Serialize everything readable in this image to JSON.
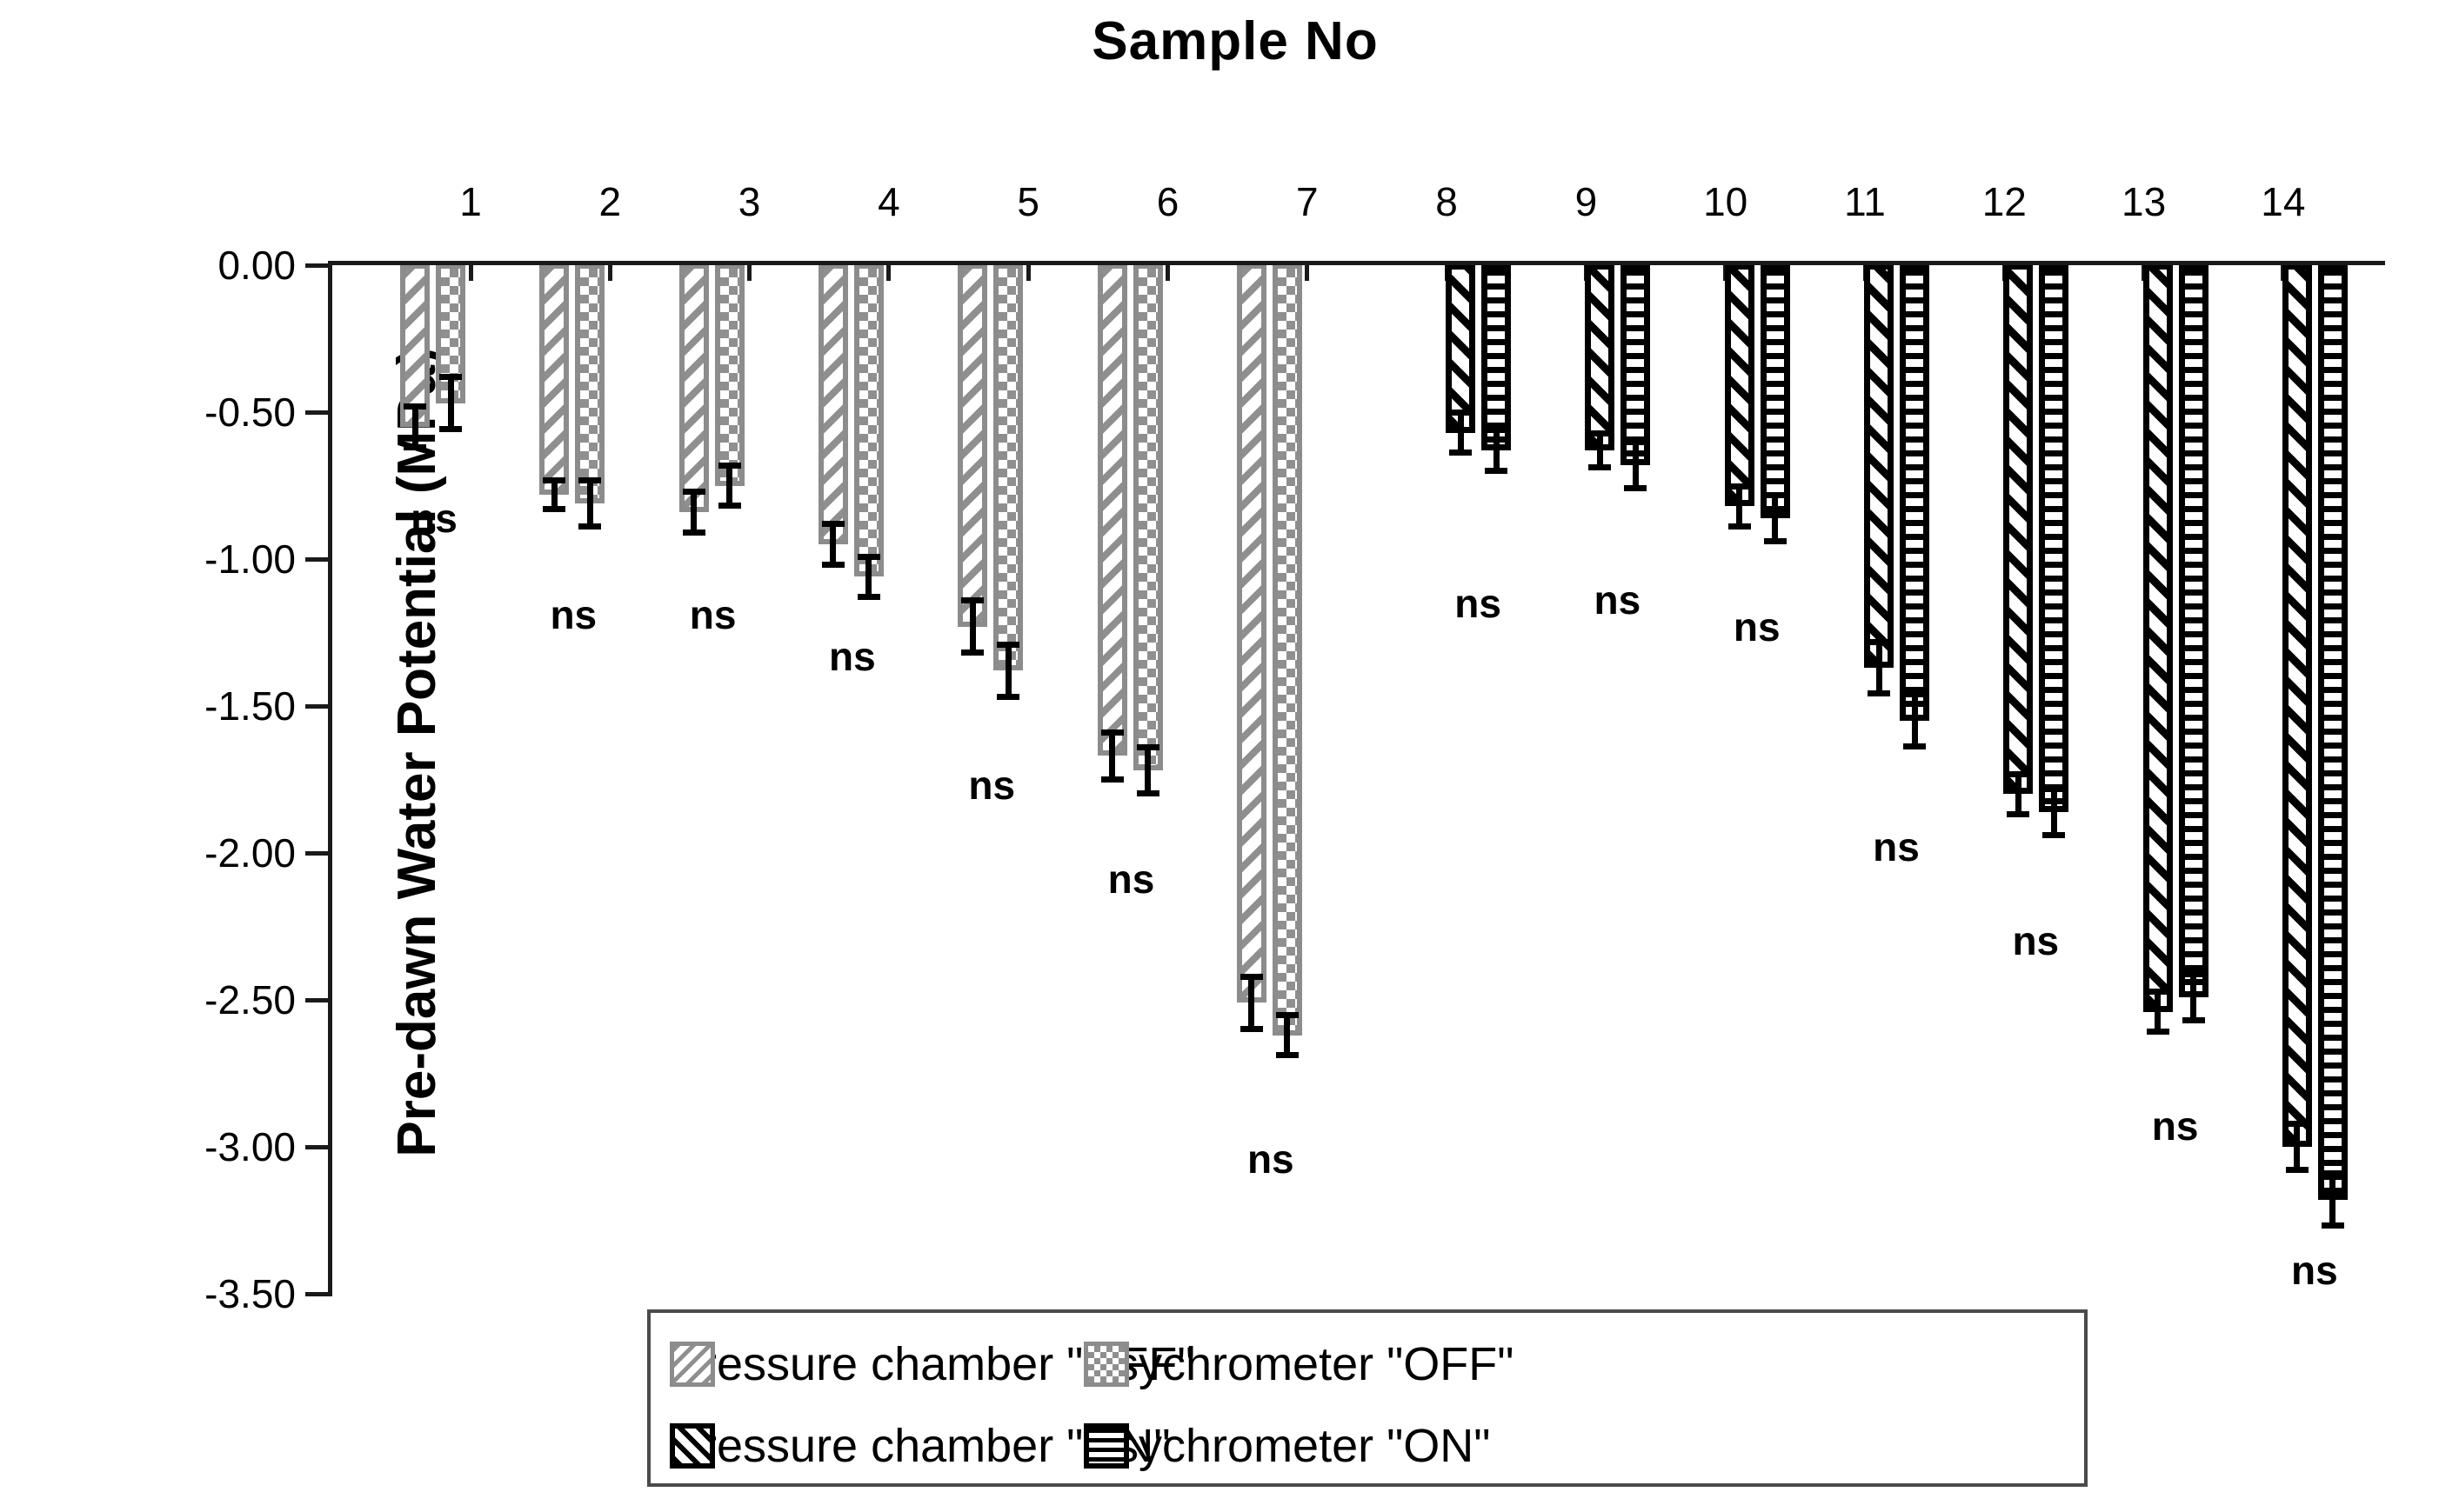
{
  "title": "Sample No",
  "y_axis": {
    "label": "Pre-dawn Water Potential (MPa)",
    "tick_labels": [
      "0.00",
      "-0.50",
      "-1.00",
      "-1.50",
      "-2.00",
      "-2.50",
      "-3.00",
      "-3.50"
    ],
    "tick_values": [
      0,
      -0.5,
      -1.0,
      -1.5,
      -2.0,
      -2.5,
      -3.0,
      -3.5
    ]
  },
  "legend": {
    "items": [
      {
        "label": "Pressure chamber \"OFF\"",
        "pattern": "diagonal-gray-hatch",
        "swatch_color": "#8c8c8c"
      },
      {
        "label": "Psychrometer \"OFF\"",
        "pattern": "checkerboard-gray",
        "swatch_color": "#8c8c8c"
      },
      {
        "label": "Pressure chamber \"ON\"",
        "pattern": "diagonal-black-hatch",
        "swatch_color": "#000000"
      },
      {
        "label": "Psychrometer \"ON\"",
        "pattern": "horizontal-black-lines",
        "swatch_color": "#000000"
      }
    ]
  },
  "chart_data": {
    "type": "bar",
    "orientation": "vertical-negative",
    "title": "Sample No",
    "ylabel": "Pre-dawn Water Potential (MPa)",
    "ylim": [
      -3.5,
      0
    ],
    "grid": false,
    "legend_position": "bottom",
    "categories": [
      "1",
      "2",
      "3",
      "4",
      "5",
      "6",
      "7",
      "8",
      "9",
      "10",
      "11",
      "12",
      "13",
      "14"
    ],
    "series": [
      {
        "name": "Pressure chamber \"OFF\"",
        "pattern": "diagonal-gray-hatch",
        "values": [
          -0.55,
          -0.78,
          -0.84,
          -0.95,
          -1.23,
          -1.67,
          -2.51,
          null,
          null,
          null,
          null,
          null,
          null,
          null
        ],
        "errors": [
          0.07,
          0.05,
          0.07,
          0.07,
          0.09,
          0.08,
          0.09,
          null,
          null,
          null,
          null,
          null,
          null,
          null
        ]
      },
      {
        "name": "Psychrometer \"OFF\"",
        "pattern": "checkerboard-gray",
        "values": [
          -0.47,
          -0.81,
          -0.75,
          -1.06,
          -1.38,
          -1.72,
          -2.62,
          null,
          null,
          null,
          null,
          null,
          null,
          null
        ],
        "errors": [
          0.09,
          0.08,
          0.07,
          0.07,
          0.09,
          0.08,
          0.07,
          null,
          null,
          null,
          null,
          null,
          null,
          null
        ]
      },
      {
        "name": "Pressure chamber \"ON\"",
        "pattern": "diagonal-black-hatch",
        "values": [
          null,
          null,
          null,
          null,
          null,
          null,
          null,
          -0.57,
          -0.63,
          -0.82,
          -1.37,
          -1.8,
          -2.54,
          -3.0
        ],
        "errors": [
          null,
          null,
          null,
          null,
          null,
          null,
          null,
          0.07,
          0.06,
          0.07,
          0.09,
          0.07,
          0.07,
          0.08
        ]
      },
      {
        "name": "Psychrometer \"ON\"",
        "pattern": "horizontal-black-lines",
        "values": [
          null,
          null,
          null,
          null,
          null,
          null,
          null,
          -0.63,
          -0.68,
          -0.86,
          -1.55,
          -1.86,
          -2.49,
          -3.18
        ],
        "errors": [
          null,
          null,
          null,
          null,
          null,
          null,
          null,
          0.07,
          0.08,
          0.08,
          0.09,
          0.08,
          0.08,
          0.09
        ]
      }
    ],
    "annotations": [
      {
        "category": "1",
        "text": "ns",
        "y": -0.86
      },
      {
        "category": "2",
        "text": "ns",
        "y": -1.19
      },
      {
        "category": "3",
        "text": "ns",
        "y": -1.19
      },
      {
        "category": "4",
        "text": "ns",
        "y": -1.33
      },
      {
        "category": "5",
        "text": "ns",
        "y": -1.77
      },
      {
        "category": "6",
        "text": "ns",
        "y": -2.09
      },
      {
        "category": "7",
        "text": "ns",
        "y": -3.04
      },
      {
        "category": "8",
        "text": "ns",
        "y": -1.15
      },
      {
        "category": "9",
        "text": "ns",
        "y": -1.14
      },
      {
        "category": "10",
        "text": "ns",
        "y": -1.23
      },
      {
        "category": "11",
        "text": "ns",
        "y": -1.98
      },
      {
        "category": "12",
        "text": "ns",
        "y": -2.3
      },
      {
        "category": "13",
        "text": "ns",
        "y": -2.93
      },
      {
        "category": "14",
        "text": "ns",
        "y": -3.42
      }
    ]
  }
}
